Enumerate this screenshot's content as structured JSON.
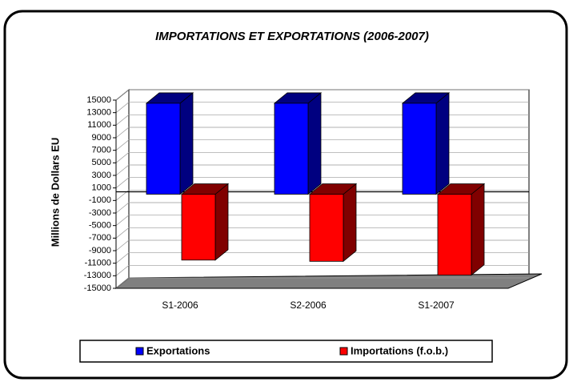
{
  "chart_data": {
    "type": "bar3d",
    "title": "IMPORTATIONS ET EXPORTATIONS (2006-2007)",
    "y_label": "Millions de Dollars EU",
    "categories": [
      "S1-2006",
      "S2-2006",
      "S1-2007"
    ],
    "series": [
      {
        "name": "Exportations",
        "color": "#0000ff",
        "values": [
          14500,
          14500,
          14500
        ]
      },
      {
        "name": "Importations (f.o.b.)",
        "color": "#ff0000",
        "values": [
          -10500,
          -10700,
          -12900
        ]
      }
    ],
    "ylim": [
      -15000,
      15000
    ],
    "yticks": [
      15000,
      13000,
      11000,
      9000,
      7000,
      5000,
      3000,
      1000,
      -1000,
      -3000,
      -5000,
      -7000,
      -9000,
      -11000,
      -13000,
      -15000
    ],
    "grid": true
  }
}
